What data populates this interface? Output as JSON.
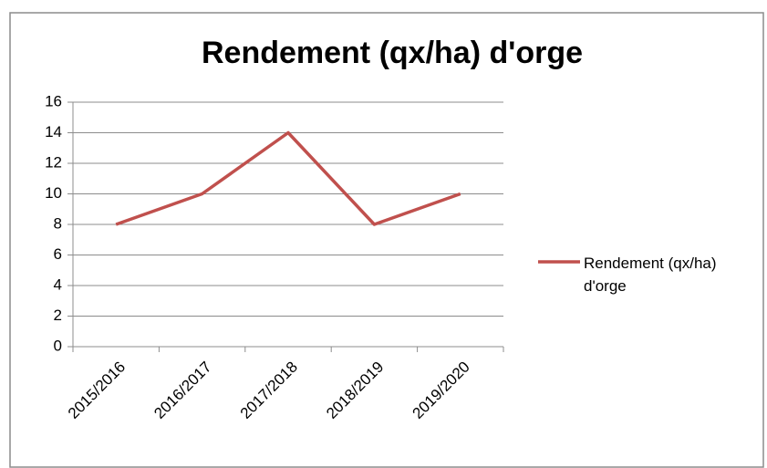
{
  "chart_data": {
    "type": "line",
    "title": "Rendement (qx/ha) d'orge",
    "categories": [
      "2015/2016",
      "2016/2017",
      "2017/2018",
      "2018/2019",
      "2019/2020"
    ],
    "series": [
      {
        "name": "Rendement (qx/ha) d'orge",
        "color": "#c0504d",
        "values": [
          8,
          10,
          14,
          8,
          10
        ]
      }
    ],
    "ylim": [
      0,
      16
    ],
    "yticks": [
      0,
      2,
      4,
      6,
      8,
      10,
      12,
      14,
      16
    ],
    "grid": true,
    "legend": "right"
  }
}
